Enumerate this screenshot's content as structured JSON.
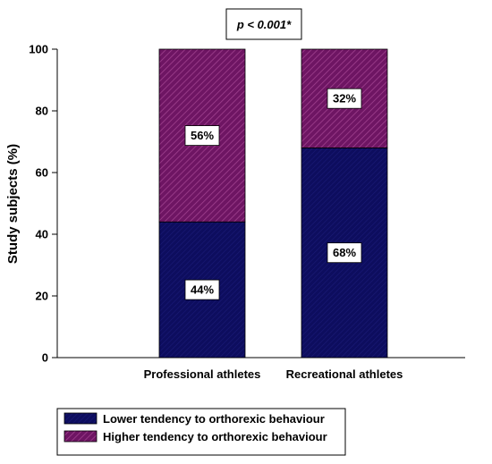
{
  "chart_data": {
    "type": "bar",
    "stacked": true,
    "annotation": "p < 0.001*",
    "categories": [
      "Professional athletes",
      "Recreational athletes"
    ],
    "ylabel": "Study subjects (%)",
    "ylim": [
      0,
      100
    ],
    "yticks": [
      0,
      20,
      40,
      60,
      80,
      100
    ],
    "series": [
      {
        "name": "Lower tendency to orthorexic behaviour",
        "values": [
          44,
          68
        ],
        "labels": [
          "44%",
          "68%"
        ],
        "color": "#0d0d5e",
        "pattern": "solid"
      },
      {
        "name": "Higher tendency  to orthorexic behaviour",
        "values": [
          56,
          32
        ],
        "labels": [
          "56%",
          "32%"
        ],
        "color": "#7a1f6e",
        "pattern": "diagonal-hatch"
      }
    ],
    "legend_position": "bottom-left",
    "grid": false
  }
}
